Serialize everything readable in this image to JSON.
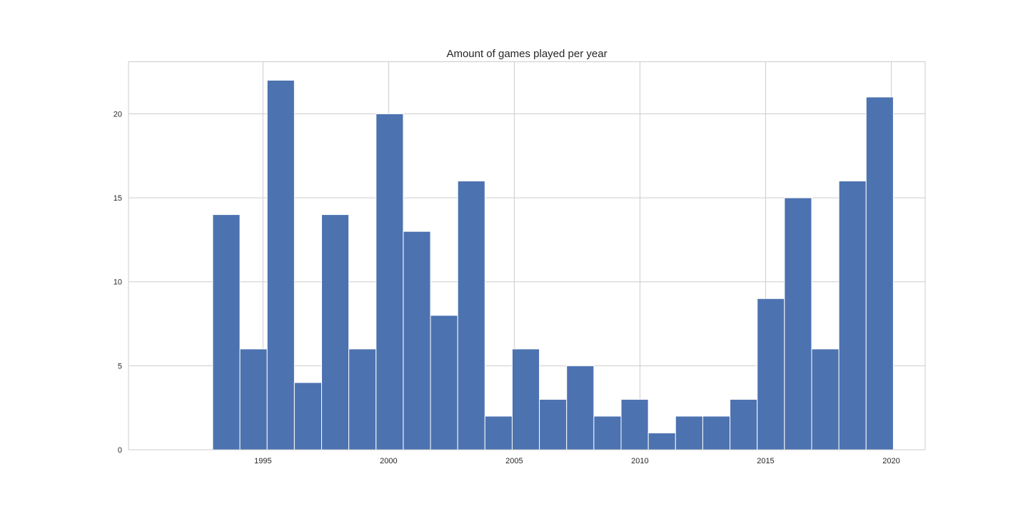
{
  "chart_data": {
    "type": "bar",
    "title": "Amount of games played per year",
    "xlabel": "",
    "ylabel": "",
    "x_start": 1993.0,
    "bin_width": 1.0833,
    "values": [
      14,
      6,
      22,
      4,
      14,
      6,
      20,
      13,
      8,
      16,
      2,
      6,
      3,
      5,
      2,
      3,
      1,
      2,
      2,
      3,
      9,
      15,
      6,
      16,
      21
    ],
    "xlim": [
      1989.65,
      2021.35
    ],
    "ylim": [
      0,
      23.1
    ],
    "x_ticks": [
      1995,
      2000,
      2005,
      2010,
      2015,
      2020
    ],
    "y_ticks": [
      0,
      5,
      10,
      15,
      20
    ],
    "x_tick_labels": [
      "1995",
      "2000",
      "2005",
      "2010",
      "2015",
      "2020"
    ],
    "y_tick_labels": [
      "0",
      "5",
      "10",
      "15",
      "20"
    ],
    "grid": true,
    "bar_color": "#4c72b0",
    "grid_color": "#cccccc",
    "axes_edge_color": "#cccccc"
  }
}
